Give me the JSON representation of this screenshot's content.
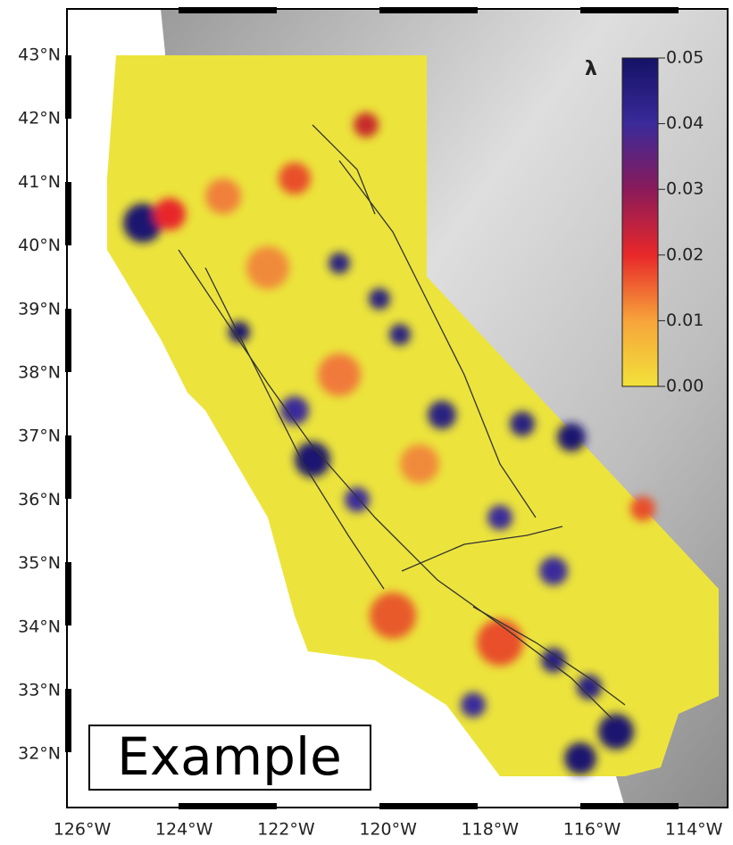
{
  "map": {
    "lat_labels": [
      "43°N",
      "42°N",
      "41°N",
      "40°N",
      "39°N",
      "38°N",
      "37°N",
      "36°N",
      "35°N",
      "34°N",
      "33°N",
      "32°N"
    ],
    "lon_labels": [
      "126°W",
      "124°W",
      "122°W",
      "120°W",
      "118°W",
      "116°W",
      "114°W"
    ],
    "colorbar": {
      "label": "λ",
      "range": [
        0,
        0.05
      ],
      "ticks": [
        {
          "value": 0,
          "label": "0.00"
        },
        {
          "value": 0.01,
          "label": "0.01"
        },
        {
          "value": 0.02,
          "label": "0.02"
        },
        {
          "value": 0.03,
          "label": "0.03"
        },
        {
          "value": 0.04,
          "label": "0.04"
        },
        {
          "value": 0.05,
          "label": "0.05"
        }
      ],
      "colors": [
        "#f2e23a",
        "#f7a43a",
        "#e8282a",
        "#8a1a5a",
        "#3a2a9a",
        "#141266"
      ]
    },
    "stamp": "Example"
  }
}
